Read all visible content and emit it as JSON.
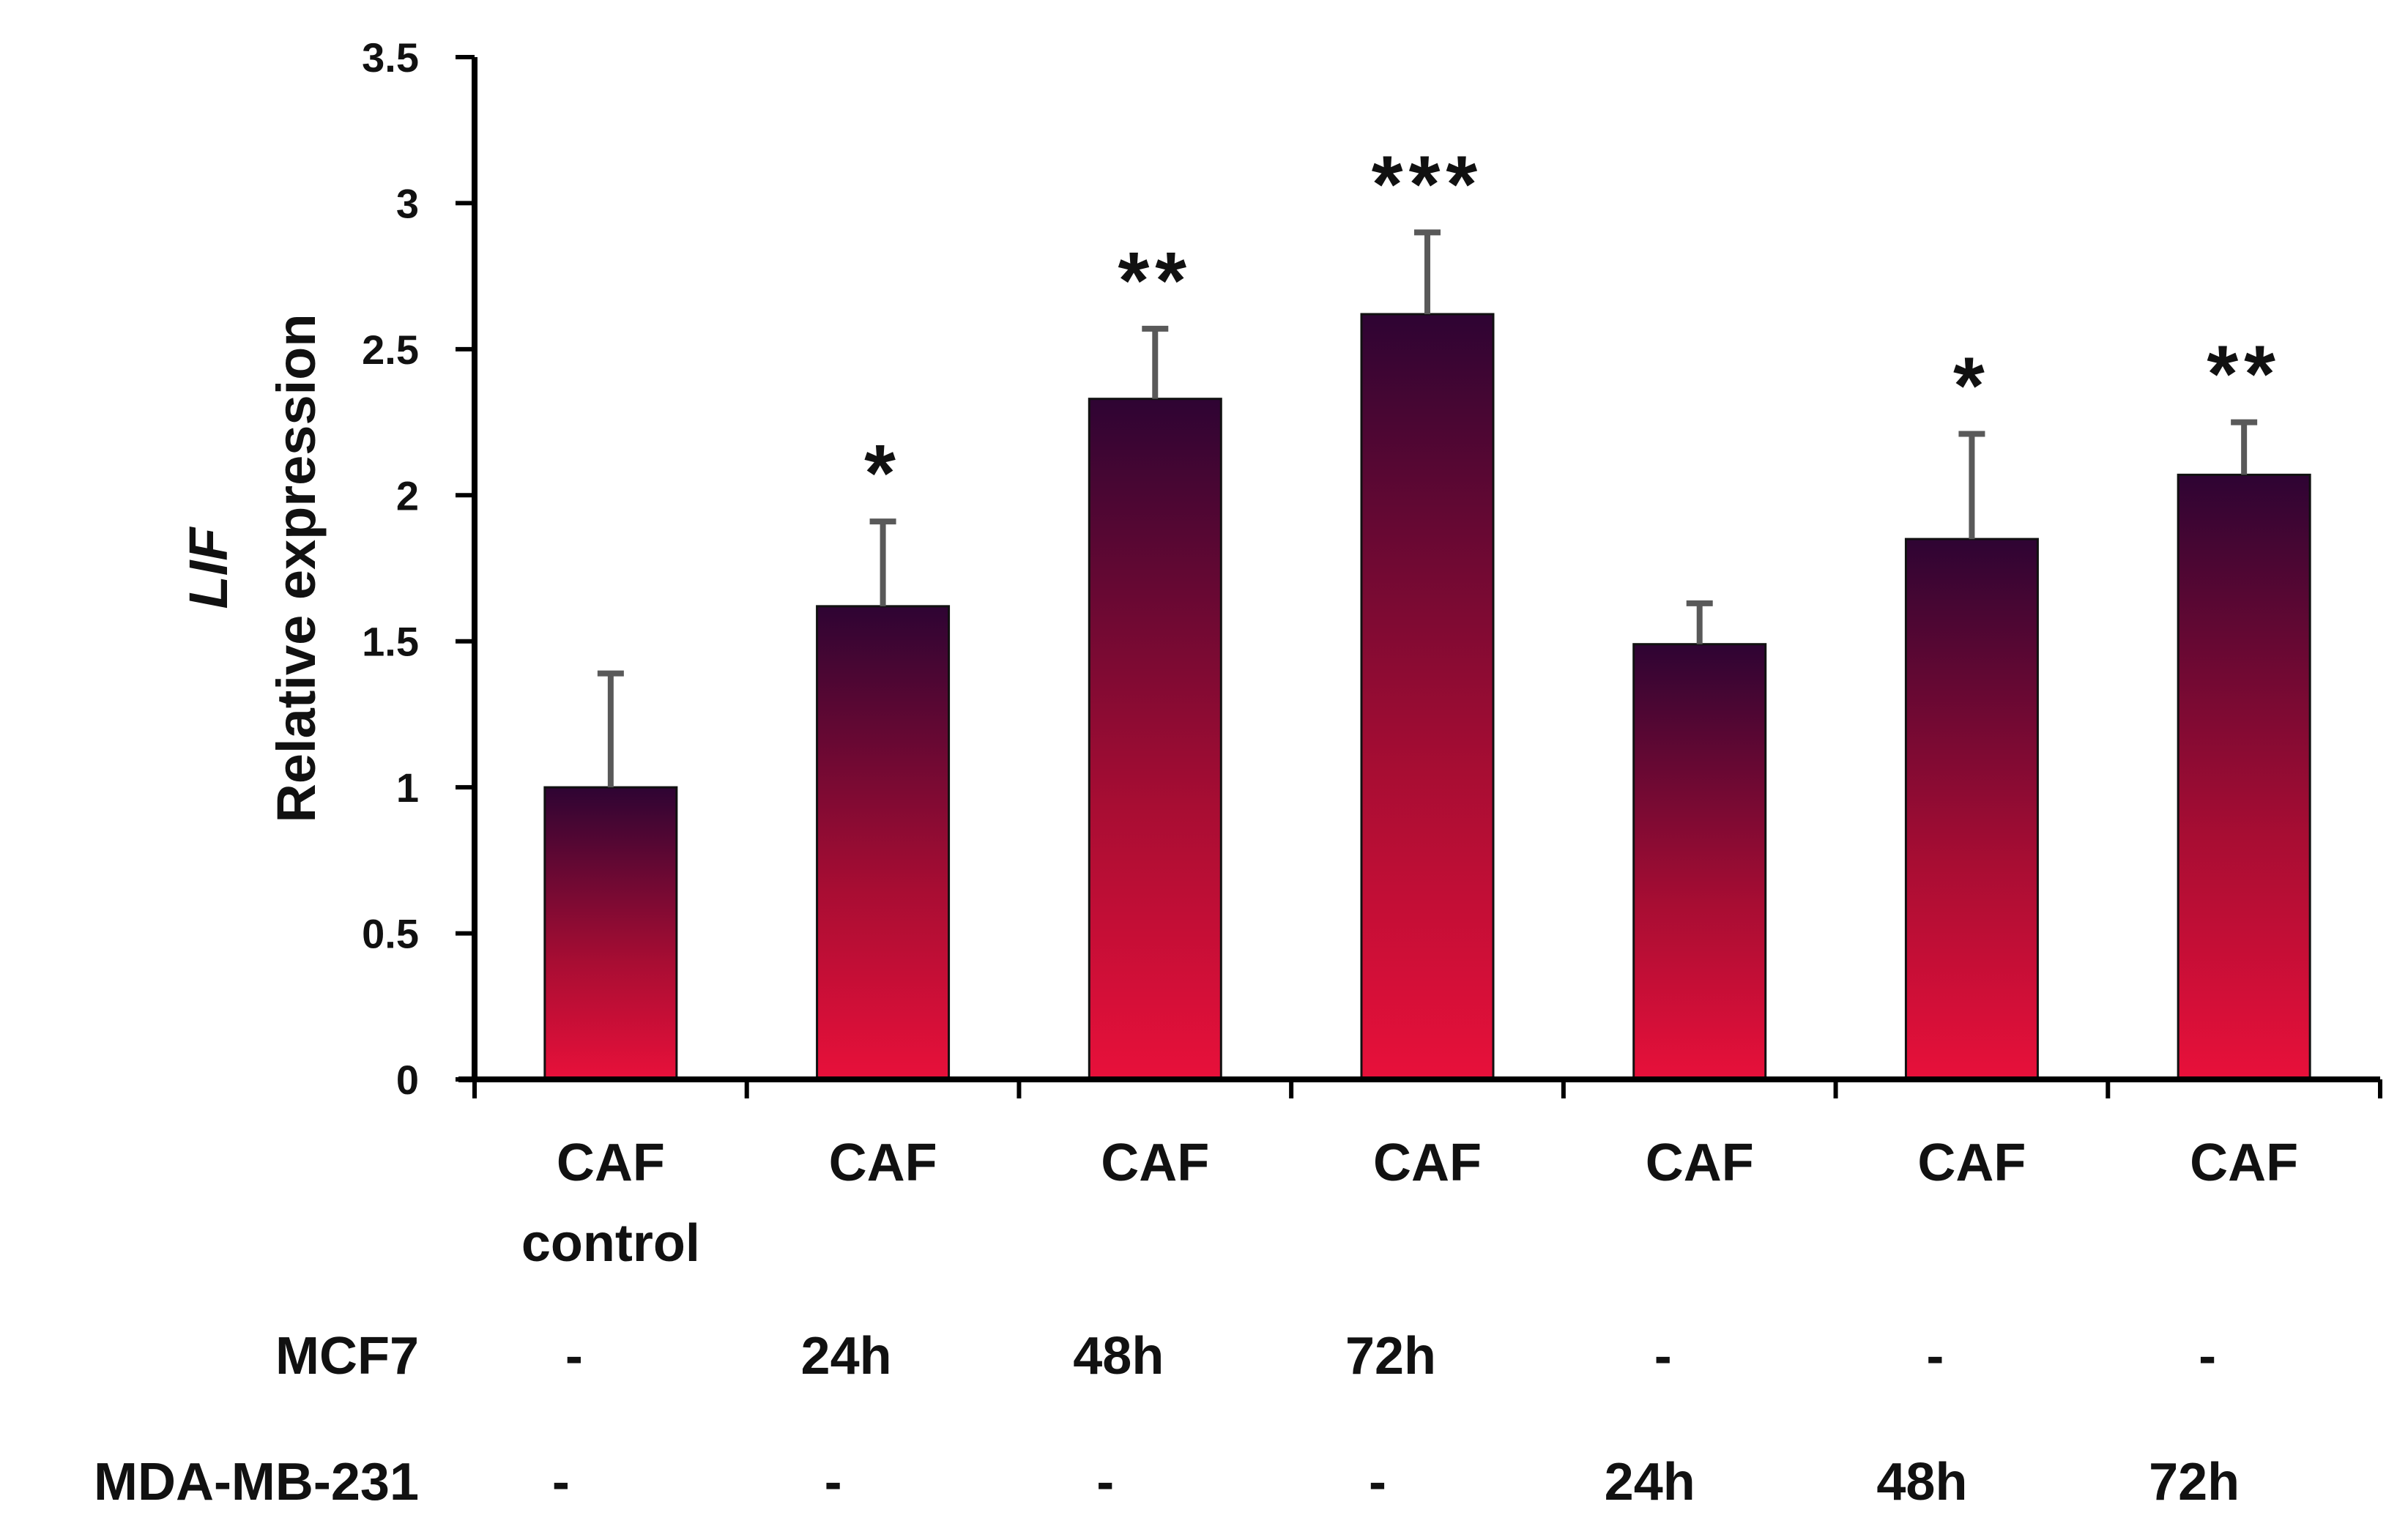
{
  "chart_data": {
    "type": "bar",
    "title": "",
    "ylabel_gene": "LIF",
    "ylabel": "Relative expression",
    "xlabel": "",
    "ylim": [
      0,
      3.5
    ],
    "yticks": [
      "0",
      "0.5",
      "1",
      "1.5",
      "2",
      "2.5",
      "3",
      "3.5"
    ],
    "ytick_values": [
      0,
      0.5,
      1,
      1.5,
      2,
      2.5,
      3,
      3.5
    ],
    "categories": [
      {
        "line1": "CAF",
        "line2": "control"
      },
      {
        "line1": "CAF",
        "line2": ""
      },
      {
        "line1": "CAF",
        "line2": ""
      },
      {
        "line1": "CAF",
        "line2": ""
      },
      {
        "line1": "CAF",
        "line2": ""
      },
      {
        "line1": "CAF",
        "line2": ""
      },
      {
        "line1": "CAF",
        "line2": ""
      }
    ],
    "values": [
      1.0,
      1.62,
      2.33,
      2.62,
      1.49,
      1.85,
      2.07
    ],
    "error_upper": [
      0.39,
      0.29,
      0.24,
      0.28,
      0.14,
      0.36,
      0.18
    ],
    "significance": [
      "",
      "*",
      "**",
      "***",
      "",
      "*",
      "**"
    ],
    "conditions": [
      {
        "label": "MCF7",
        "values": [
          "-",
          "24h",
          "48h",
          "72h",
          "-",
          "-",
          "-"
        ]
      },
      {
        "label": "MDA-MB-231",
        "values": [
          "-",
          "-",
          "-",
          "-",
          "24h",
          "48h",
          "72h"
        ]
      }
    ],
    "colors": {
      "bar_top": "#2e0433",
      "bar_bottom": "#e8103a",
      "error_bar": "#595959",
      "axis": "#000000"
    }
  }
}
